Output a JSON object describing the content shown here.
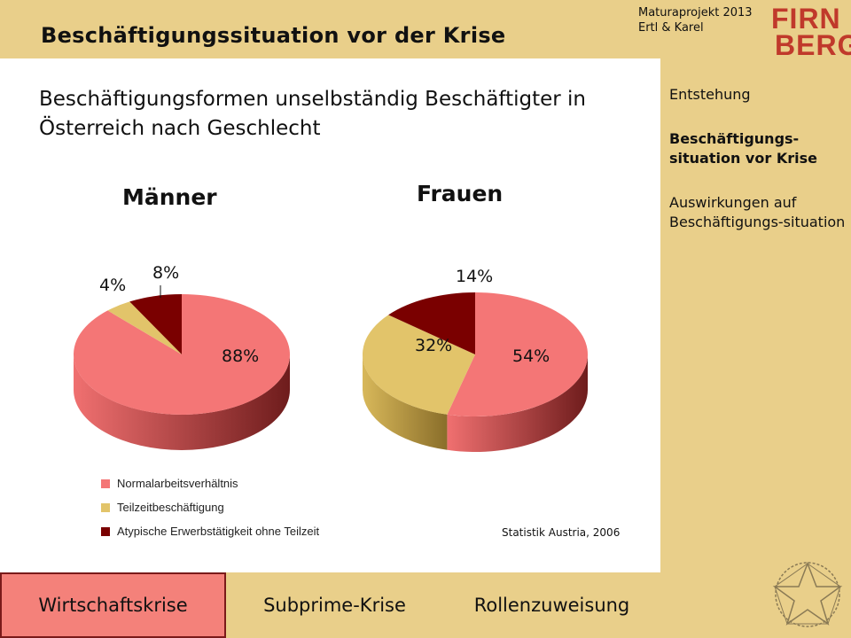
{
  "header": {
    "title": "Beschäftigungssituation vor der Krise",
    "project": "Maturaprojekt 2013",
    "authors": "Ertl & Karel",
    "logo_text_1": "FIRN",
    "logo_text_2": "BERG"
  },
  "colors": {
    "normal": "#f47676",
    "teilzeit": "#e2c46a",
    "atypisch": "#7a0000"
  },
  "chart_data": {
    "type": "pie",
    "title": "Beschäftigungsformen unselbständig Beschäftigter in Österreich nach Geschlecht",
    "legend": [
      "Normalarbeitsverhältnis",
      "Teilzeitbeschäftigung",
      "Atypische Erwerbstätigkeit ohne Teilzeit"
    ],
    "legend_placement": "bottom-left",
    "source": "Statistik Austria, 2006",
    "pies": [
      {
        "name": "Männer",
        "labels": [
          "88%",
          "4%",
          "8%"
        ],
        "values": [
          88,
          4,
          8
        ]
      },
      {
        "name": "Frauen",
        "labels": [
          "54%",
          "32%",
          "14%"
        ],
        "values": [
          54,
          32,
          14
        ]
      }
    ]
  },
  "nav": {
    "items": [
      {
        "label": "Entstehung",
        "active": false
      },
      {
        "label": "Beschäftigungs-situation vor Krise",
        "active": true
      },
      {
        "label": "Auswirkungen auf Beschäftigungs-situation",
        "active": false
      }
    ]
  },
  "tabs": [
    {
      "label": "Wirtschaftskrise",
      "active": true
    },
    {
      "label": "Subprime-Krise",
      "active": false
    },
    {
      "label": "Rollenzuweisung",
      "active": false
    }
  ]
}
